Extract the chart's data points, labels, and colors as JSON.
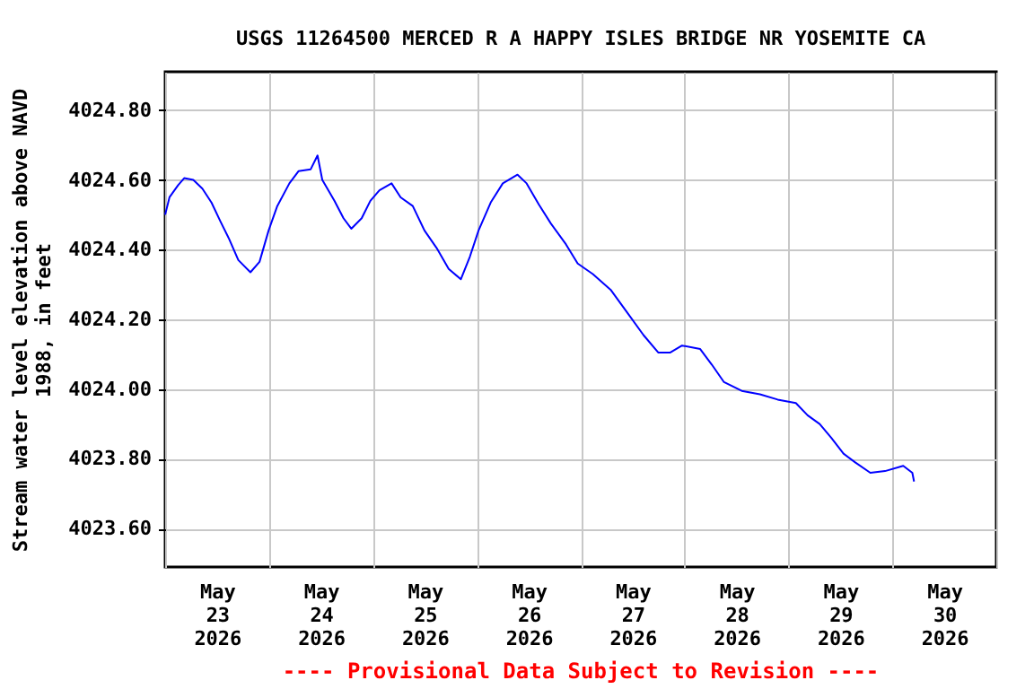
{
  "chart_data": {
    "type": "line",
    "title": "USGS 11264500 MERCED R A HAPPY ISLES BRIDGE NR YOSEMITE CA",
    "ylabel": "Stream water level elevation above NAVD 1988, in feet",
    "annotations": [
      "---- Provisional Data Subject to Revision ----"
    ],
    "x": [
      "2026-05-23T00:00",
      "2026-05-23T01:00",
      "2026-05-23T03:00",
      "2026-05-23T04:24",
      "2026-05-23T06:30",
      "2026-05-23T08:36",
      "2026-05-23T10:42",
      "2026-05-23T12:48",
      "2026-05-23T14:48",
      "2026-05-23T16:54",
      "2026-05-23T19:42",
      "2026-05-23T21:48",
      "2026-05-23T23:54",
      "2026-05-24T01:54",
      "2026-05-24T04:42",
      "2026-05-24T06:48",
      "2026-05-24T09:36",
      "2026-05-24T11:12",
      "2026-05-24T12:18",
      "2026-05-24T15:06",
      "2026-05-24T17:12",
      "2026-05-24T19:00",
      "2026-05-24T21:24",
      "2026-05-24T23:24",
      "2026-05-25T01:30",
      "2026-05-25T04:18",
      "2026-05-25T06:24",
      "2026-05-25T09:12",
      "2026-05-25T11:54",
      "2026-05-25T14:42",
      "2026-05-25T17:30",
      "2026-05-25T20:18",
      "2026-05-25T22:24",
      "2026-05-26T00:24",
      "2026-05-26T03:12",
      "2026-05-26T06:00",
      "2026-05-26T09:24",
      "2026-05-26T11:30",
      "2026-05-26T14:18",
      "2026-05-26T17:06",
      "2026-05-26T20:36",
      "2026-05-26T23:18",
      "2026-05-27T02:48",
      "2026-05-27T06:54",
      "2026-05-27T11:00",
      "2026-05-27T14:30",
      "2026-05-27T17:54",
      "2026-05-27T20:42",
      "2026-05-27T23:24",
      "2026-05-28T03:36",
      "2026-05-28T06:18",
      "2026-05-28T09:06",
      "2026-05-28T13:12",
      "2026-05-28T17:24",
      "2026-05-28T21:30",
      "2026-05-29T01:42",
      "2026-05-29T04:24",
      "2026-05-29T07:12",
      "2026-05-29T09:54",
      "2026-05-29T12:42",
      "2026-05-29T15:24",
      "2026-05-29T18:54",
      "2026-05-29T22:18",
      "2026-05-30T02:30",
      "2026-05-30T04:36",
      "2026-05-30T05:00"
    ],
    "series": [
      {
        "color": "#0000ff",
        "values": [
          4024.5,
          4024.55,
          4024.585,
          4024.605,
          4024.6,
          4024.575,
          4024.535,
          4024.48,
          4024.43,
          4024.37,
          4024.335,
          4024.365,
          4024.455,
          4024.525,
          4024.59,
          4024.625,
          4024.63,
          4024.67,
          4024.6,
          4024.54,
          4024.49,
          4024.46,
          4024.49,
          4024.54,
          4024.57,
          4024.59,
          4024.55,
          4024.525,
          4024.455,
          4024.405,
          4024.345,
          4024.315,
          4024.38,
          4024.455,
          4024.535,
          4024.59,
          4024.615,
          4024.59,
          4024.53,
          4024.475,
          4024.415,
          4024.36,
          4024.33,
          4024.285,
          4024.215,
          4024.155,
          4024.105,
          4024.105,
          4024.125,
          4024.115,
          4024.07,
          4024.02,
          4023.995,
          4023.985,
          4023.97,
          4023.96,
          4023.925,
          4023.9,
          4023.86,
          4023.815,
          4023.79,
          4023.76,
          4023.765,
          4023.78,
          4023.76,
          4023.735
        ]
      }
    ],
    "xlim": [
      "2026-05-23T00:00",
      "2026-05-31T00:00"
    ],
    "xticks": [
      {
        "value": "2026-05-23T00:00",
        "label": null
      },
      {
        "value": "2026-05-23T12:00",
        "label": "May 23 2026"
      },
      {
        "value": "2026-05-24T00:00",
        "label": null
      },
      {
        "value": "2026-05-24T12:00",
        "label": "May 24 2026"
      },
      {
        "value": "2026-05-25T00:00",
        "label": null
      },
      {
        "value": "2026-05-25T12:00",
        "label": "May 25 2026"
      },
      {
        "value": "2026-05-26T00:00",
        "label": null
      },
      {
        "value": "2026-05-26T12:00",
        "label": "May 26 2026"
      },
      {
        "value": "2026-05-27T00:00",
        "label": null
      },
      {
        "value": "2026-05-27T12:00",
        "label": "May 27 2026"
      },
      {
        "value": "2026-05-28T00:00",
        "label": null
      },
      {
        "value": "2026-05-28T12:00",
        "label": "May 28 2026"
      },
      {
        "value": "2026-05-29T00:00",
        "label": null
      },
      {
        "value": "2026-05-29T12:00",
        "label": "May 29 2026"
      },
      {
        "value": "2026-05-30T00:00",
        "label": null
      },
      {
        "value": "2026-05-30T12:00",
        "label": "May 30 2026"
      },
      {
        "value": "2026-05-31T00:00",
        "label": null
      }
    ],
    "ylim": [
      4023.49,
      4024.91
    ],
    "yticks": [
      {
        "value": 4023.6,
        "label": "4023.60"
      },
      {
        "value": 4023.8,
        "label": "4023.80"
      },
      {
        "value": 4024.0,
        "label": "4024.00"
      },
      {
        "value": 4024.2,
        "label": "4024.20"
      },
      {
        "value": 4024.4,
        "label": "4024.40"
      },
      {
        "value": 4024.6,
        "label": "4024.60"
      },
      {
        "value": 4024.8,
        "label": "4024.80"
      }
    ],
    "grid": true,
    "legend": false,
    "marker": "none",
    "line_style": "solid"
  }
}
